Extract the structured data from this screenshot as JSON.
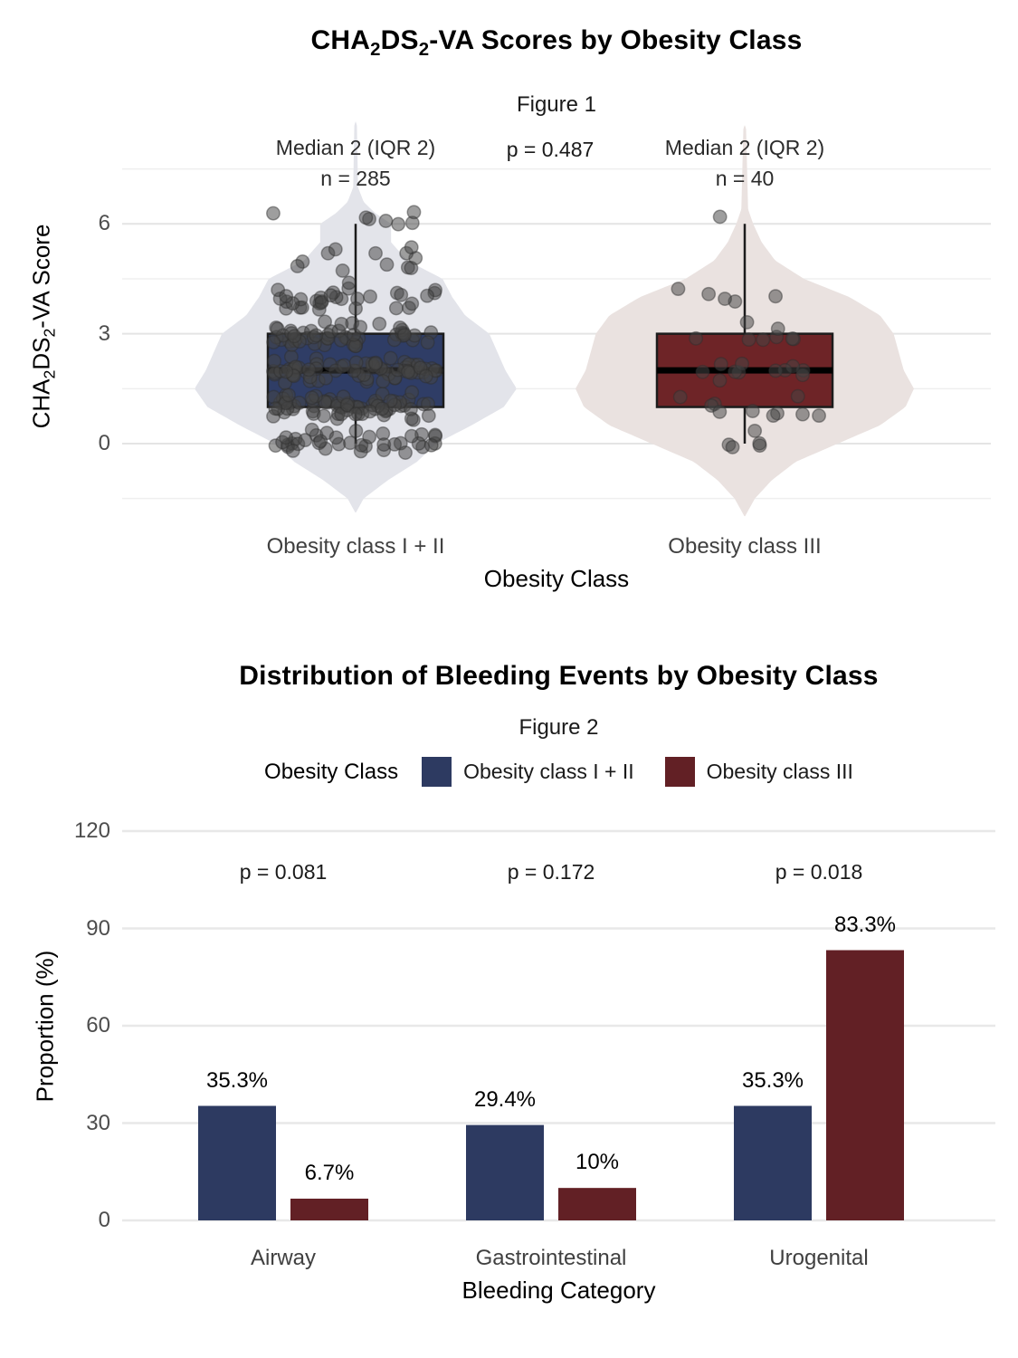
{
  "chart_data": [
    {
      "type": "violin-box",
      "title_parts": {
        "pre": "CHA",
        "sub1": "2",
        "mid": "DS",
        "sub2": "2",
        "post": "-VA Scores by Obesity Class"
      },
      "subtitle": "Figure 1",
      "ylabel_parts": {
        "pre": "CHA",
        "sub1": "2",
        "mid": "DS",
        "sub2": "2",
        "post": "-VA Score"
      },
      "xlabel": "Obesity Class",
      "yticks": [
        "0",
        "3",
        "6"
      ],
      "ytick_values": [
        0,
        3,
        6
      ],
      "p_label": "p = 0.487",
      "grid_major_color": "#e4e4e4",
      "grid_minor_color": "#efefef",
      "point_color": "#454545",
      "groups": [
        {
          "label": "Obesity class I + II",
          "annotation": "Median 2 (IQR 2)",
          "n_label": "n = 285",
          "n": 285,
          "median": 2,
          "q1": 1,
          "q3": 3,
          "whisker_low": 0,
          "whisker_high": 6,
          "box_color": "#2f3d66",
          "violin_color": "#e3e4ea",
          "score_counts": {
            "0": 38,
            "1": 72,
            "2": 72,
            "3": 52,
            "4": 32,
            "5": 12,
            "6": 7
          },
          "density_profile": [
            [
              -1.9,
              0
            ],
            [
              -1.5,
              0.05
            ],
            [
              -1.0,
              0.2
            ],
            [
              -0.5,
              0.38
            ],
            [
              0,
              0.5
            ],
            [
              0.5,
              0.72
            ],
            [
              1.0,
              0.92
            ],
            [
              1.5,
              1.0
            ],
            [
              2.0,
              0.93
            ],
            [
              2.5,
              0.88
            ],
            [
              3.0,
              0.83
            ],
            [
              3.5,
              0.68
            ],
            [
              4.0,
              0.6
            ],
            [
              4.5,
              0.54
            ],
            [
              5.0,
              0.32
            ],
            [
              5.5,
              0.22
            ],
            [
              6.0,
              0.22
            ],
            [
              6.3,
              0.12
            ],
            [
              6.6,
              0.05
            ],
            [
              7.0,
              0.015
            ],
            [
              8.7,
              0.008
            ],
            [
              8.8,
              0
            ]
          ]
        },
        {
          "label": "Obesity class III",
          "annotation": "Median 2 (IQR 2)",
          "n_label": "n = 40",
          "n": 40,
          "median": 2,
          "q1": 1,
          "q3": 3,
          "whisker_low": 0,
          "whisker_high": 6,
          "box_color": "#6e2427",
          "violin_color": "#eae2e0",
          "score_counts": {
            "0": 5,
            "1": 10,
            "2": 11,
            "3": 8,
            "4": 5,
            "6": 1
          },
          "density_profile": [
            [
              -2.0,
              0
            ],
            [
              -1.5,
              0.06
            ],
            [
              -1.0,
              0.16
            ],
            [
              -0.5,
              0.3
            ],
            [
              0,
              0.55
            ],
            [
              0.5,
              0.8
            ],
            [
              1.0,
              0.95
            ],
            [
              1.5,
              1.0
            ],
            [
              2.0,
              0.94
            ],
            [
              2.5,
              0.91
            ],
            [
              3.0,
              0.88
            ],
            [
              3.5,
              0.8
            ],
            [
              4.0,
              0.62
            ],
            [
              4.5,
              0.35
            ],
            [
              5.0,
              0.18
            ],
            [
              5.5,
              0.1
            ],
            [
              6.0,
              0.05
            ],
            [
              6.4,
              0.02
            ],
            [
              8.6,
              0.008
            ],
            [
              8.7,
              0
            ]
          ]
        }
      ]
    },
    {
      "type": "bar",
      "title": "Distribution of Bleeding Events by Obesity Class",
      "subtitle": "Figure 2",
      "legend_title": "Obesity Class",
      "xlabel": "Bleeding Category",
      "ylabel": "Proportion (%)",
      "ylim": [
        0,
        120
      ],
      "yticks": [
        "0",
        "30",
        "60",
        "90",
        "120"
      ],
      "ytick_values": [
        0,
        30,
        60,
        90,
        120
      ],
      "grid_color": "#e8e8e8",
      "categories": [
        "Airway",
        "Gastrointestinal",
        "Urogenital"
      ],
      "series": [
        {
          "name": "Obesity class I + II",
          "color": "#2d3a61",
          "values": [
            35.3,
            29.4,
            35.3
          ],
          "labels": [
            "35.3%",
            "29.4%",
            "35.3%"
          ]
        },
        {
          "name": "Obesity class III",
          "color": "#622025",
          "values": [
            6.7,
            10,
            83.3
          ],
          "labels": [
            "6.7%",
            "10%",
            "83.3%"
          ]
        }
      ],
      "p_labels": [
        "p = 0.081",
        "p = 0.172",
        "p = 0.018"
      ]
    }
  ]
}
